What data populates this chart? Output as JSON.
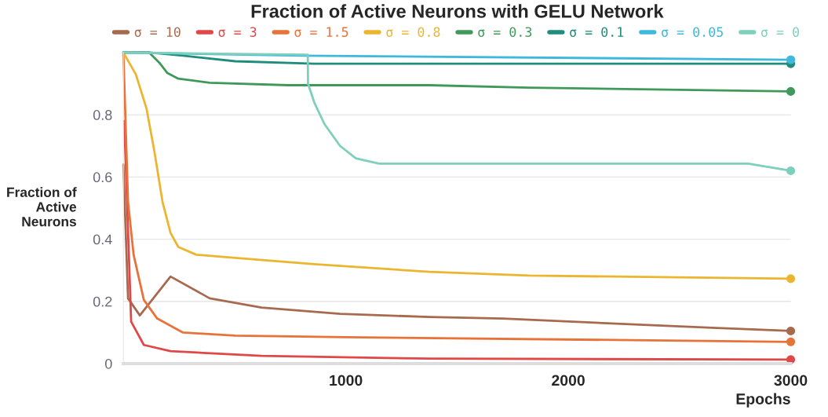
{
  "chart_data": {
    "type": "line",
    "title": "Fraction of Active Neurons with GELU Network",
    "xlabel": "Epochs",
    "ylabel": "Fraction of\nActive\nNeurons",
    "xlim": [
      0,
      3000
    ],
    "xticks": [
      1000,
      2000,
      3000
    ],
    "ylim": [
      0,
      1.0
    ],
    "yticks": [
      0,
      0.2,
      0.4,
      0.6,
      0.8
    ],
    "grid": "y",
    "legend": "top",
    "series": [
      {
        "name": "σ = 10",
        "color": "#a86a4f",
        "x": [
          0,
          21,
          74,
          212,
          388,
          621,
          974,
          1376,
          1705,
          2174,
          2647,
          3000
        ],
        "values": [
          0.64,
          0.21,
          0.155,
          0.28,
          0.21,
          0.18,
          0.16,
          0.15,
          0.145,
          0.13,
          0.115,
          0.105
        ]
      },
      {
        "name": "σ = 3",
        "color": "#e04848",
        "x": [
          4,
          35,
          92,
          212,
          621,
          1376,
          3000
        ],
        "values": [
          0.78,
          0.135,
          0.06,
          0.04,
          0.025,
          0.016,
          0.013
        ]
      },
      {
        "name": "σ = 1.5",
        "color": "#e8733a",
        "x": [
          0,
          21,
          46,
          92,
          152,
          268,
          503,
          1000,
          3000
        ],
        "values": [
          1.0,
          0.52,
          0.35,
          0.205,
          0.145,
          0.1,
          0.09,
          0.085,
          0.07
        ]
      },
      {
        "name": "σ = 0.8",
        "color": "#ecb530",
        "x": [
          0,
          56,
          104,
          140,
          176,
          212,
          247,
          328,
          503,
          858,
          1376,
          1823,
          3000
        ],
        "values": [
          1.0,
          0.93,
          0.82,
          0.68,
          0.52,
          0.42,
          0.375,
          0.35,
          0.34,
          0.32,
          0.295,
          0.283,
          0.273
        ]
      },
      {
        "name": "σ = 0.3",
        "color": "#3f9a5a",
        "x": [
          0,
          116,
          162,
          198,
          247,
          388,
          741,
          1376,
          1823,
          3000
        ],
        "values": [
          1.0,
          1.0,
          0.967,
          0.934,
          0.916,
          0.903,
          0.895,
          0.895,
          0.887,
          0.875
        ]
      },
      {
        "name": "σ = 0.1",
        "color": "#1f8c7c",
        "x": [
          0,
          120,
          268,
          503,
          858,
          3000
        ],
        "values": [
          1.0,
          1.0,
          0.99,
          0.972,
          0.964,
          0.964
        ]
      },
      {
        "name": "σ = 0.05",
        "color": "#3fb8dd",
        "x": [
          0,
          800,
          3000
        ],
        "values": [
          1.0,
          0.99,
          0.977
        ]
      },
      {
        "name": "σ = 0",
        "color": "#7ecfbc",
        "x": [
          0,
          829,
          830,
          858,
          904,
          974,
          1045,
          1150,
          2809,
          3000
        ],
        "values": [
          1.0,
          0.993,
          0.9,
          0.84,
          0.77,
          0.7,
          0.66,
          0.643,
          0.643,
          0.62
        ]
      }
    ]
  }
}
